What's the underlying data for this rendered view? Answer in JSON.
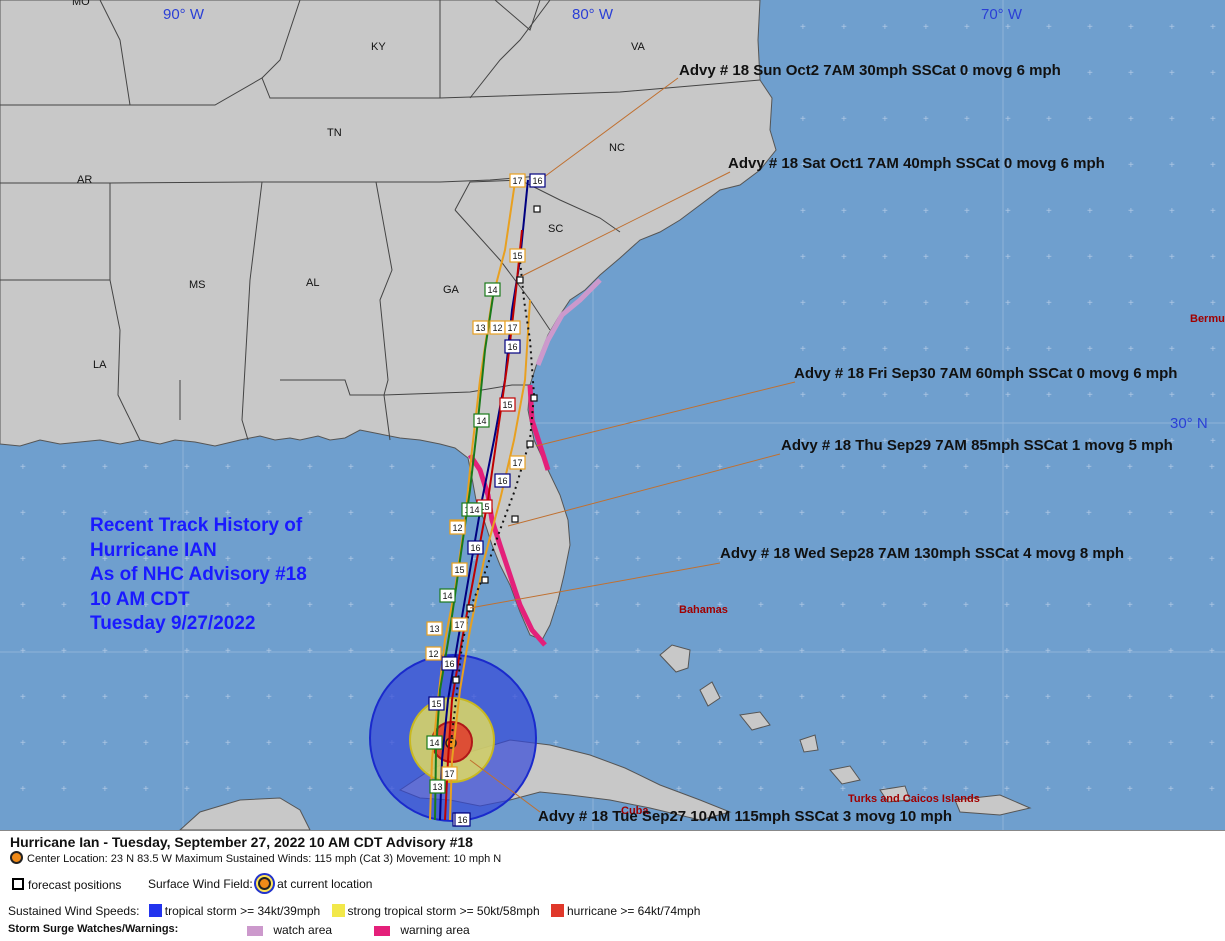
{
  "grid": {
    "lon_labels": [
      "90° W",
      "80° W",
      "70° W"
    ],
    "lat_labels": [
      "30° N"
    ],
    "mo_label": "MO"
  },
  "state_labels": {
    "KY": "KY",
    "VA": "VA",
    "TN": "TN",
    "NC": "NC",
    "AR": "AR",
    "SC": "SC",
    "MS": "MS",
    "AL": "AL",
    "GA": "GA",
    "LA": "LA"
  },
  "region_labels": {
    "bermuda": "Bermu",
    "bahamas": "Bahamas",
    "cuba": "Cuba",
    "turks": "Turks and Caicos Islands"
  },
  "advisories": [
    "Advy # 18 Sun Oct2 7AM  30mph SSCat 0 movg 6 mph",
    "Advy # 18 Sat Oct1 7AM  40mph SSCat 0 movg 6 mph",
    "Advy # 18 Fri Sep30 7AM  60mph SSCat 0 movg 6 mph",
    "Advy # 18 Thu Sep29 7AM  85mph SSCat 1 movg 5 mph",
    "Advy # 18 Wed Sep28 7AM  130mph SSCat 4 movg 8 mph",
    "Advy # 18 Tue Sep27 10AM  115mph SSCat 3 movg 10 mph"
  ],
  "history_title": [
    "Recent Track History of",
    "Hurricane IAN",
    "As of NHC Advisory #18",
    "10 AM CDT",
    "Tuesday 9/27/2022"
  ],
  "track_labels": [
    "17",
    "16",
    "15",
    "14",
    "13",
    "12",
    "17",
    "16",
    "15",
    "14",
    "17",
    "16",
    "14",
    "13",
    "12",
    "15",
    "16",
    "14",
    "17",
    "16",
    "15",
    "14",
    "13",
    "12",
    "16",
    "15",
    "14",
    "17",
    "13",
    "16"
  ],
  "legend": {
    "title": "Hurricane Ian  -  Tuesday, September 27, 2022  10 AM CDT   Advisory #18",
    "center_line": "Center Location: 23 N  83.5 W   Maximum Sustained Winds: 115 mph (Cat 3) Movement: 10 mph N",
    "forecast_positions": "forecast positions",
    "surface_wind_field": "Surface Wind Field:",
    "at_current_location": "at current location",
    "sustained_winds_label": "Sustained Wind Speeds:",
    "tropical_storm": "tropical storm >= 34kt/39mph",
    "strong_tropical_storm": "strong tropical storm >= 50kt/58mph",
    "hurricane": "hurricane >= 64kt/74mph",
    "surge_label": "Storm Surge Watches/Warnings:",
    "watch_area": "watch area",
    "warning_area": "warning area"
  },
  "colors": {
    "ocean": "#6f9fce",
    "land": "#c8c8c8",
    "tropical_storm": "#2233ee",
    "strong_tropical_storm": "#f2e84a",
    "hurricane": "#e0382a",
    "watch": "#cc99cc",
    "warning": "#e4207a",
    "history_text": "#1a1aff"
  }
}
